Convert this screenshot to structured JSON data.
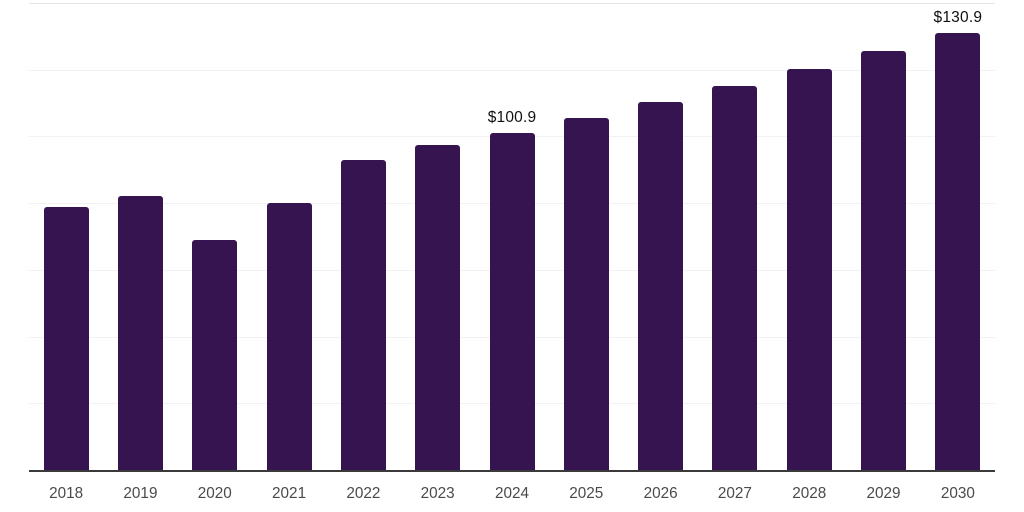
{
  "chart_data": {
    "type": "bar",
    "title": "",
    "xlabel": "",
    "ylabel": "",
    "categories": [
      "2018",
      "2019",
      "2020",
      "2021",
      "2022",
      "2023",
      "2024",
      "2025",
      "2026",
      "2027",
      "2028",
      "2029",
      "2030"
    ],
    "values": [
      78.8,
      82.1,
      69.0,
      80.0,
      93.0,
      97.3,
      100.9,
      105.5,
      110.2,
      115.0,
      120.1,
      125.6,
      130.9
    ],
    "data_labels": {
      "2024": "$100.9",
      "2030": "$130.9"
    },
    "ylim": [
      0,
      140
    ],
    "gridline_step": 20,
    "grid": "horizontal",
    "legend_position": "none",
    "colors": {
      "bar": "#361450",
      "axis_line": "#3a3a3a",
      "gridline": "#f2f2f2",
      "top_gridline": "#e4e4e4",
      "value_label": "#111111",
      "tick_label": "#4a4a4a",
      "background": "#ffffff"
    }
  }
}
